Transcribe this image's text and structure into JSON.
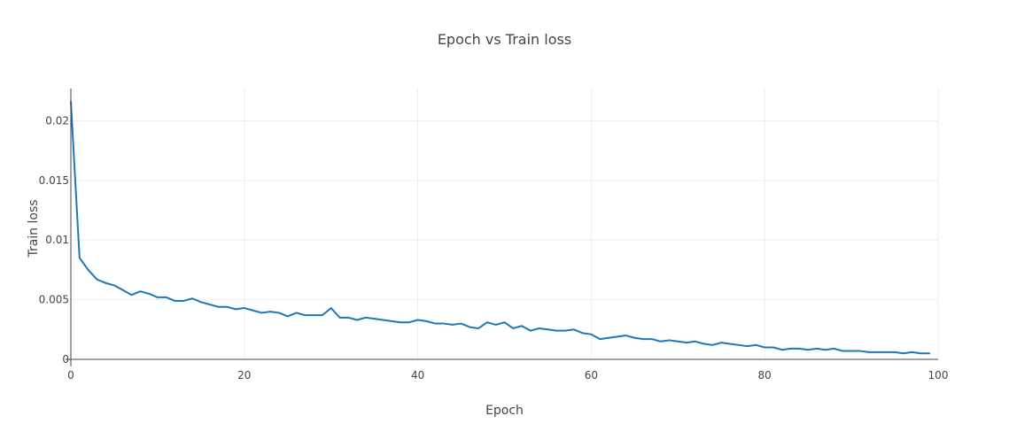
{
  "chart_data": {
    "type": "line",
    "title": "Epoch vs Train loss",
    "xlabel": "Epoch",
    "ylabel": "Train loss",
    "xlim": [
      0,
      100
    ],
    "ylim": [
      0,
      0.0227
    ],
    "xticks": [
      0,
      20,
      40,
      60,
      80,
      100
    ],
    "xtick_labels": [
      "0",
      "20",
      "40",
      "60",
      "80",
      "100"
    ],
    "yticks": [
      0,
      0.005,
      0.01,
      0.015,
      0.02
    ],
    "ytick_labels": [
      "0",
      "0.005",
      "0.01",
      "0.015",
      "0.02"
    ],
    "grid": true,
    "legend": "none",
    "colors": {
      "series": "#1f77b4",
      "grid": "#eeeeee",
      "axis": "#444444",
      "text": "#444444"
    },
    "series": [
      {
        "x": [
          0,
          1,
          2,
          3,
          4,
          5,
          6,
          7,
          8,
          9,
          10,
          11,
          12,
          13,
          14,
          15,
          16,
          17,
          18,
          19,
          20,
          21,
          22,
          23,
          24,
          25,
          26,
          27,
          28,
          29,
          30,
          31,
          32,
          33,
          34,
          35,
          36,
          37,
          38,
          39,
          40,
          41,
          42,
          43,
          44,
          45,
          46,
          47,
          48,
          49,
          50,
          51,
          52,
          53,
          54,
          55,
          56,
          57,
          58,
          59,
          60,
          61,
          62,
          63,
          64,
          65,
          66,
          67,
          68,
          69,
          70,
          71,
          72,
          73,
          74,
          75,
          76,
          77,
          78,
          79,
          80,
          81,
          82,
          83,
          84,
          85,
          86,
          87,
          88,
          89,
          90,
          91,
          92,
          93,
          94,
          95,
          96,
          97,
          98,
          99
        ],
        "values": [
          0.0216,
          0.0085,
          0.0075,
          0.0067,
          0.0064,
          0.0062,
          0.0058,
          0.0054,
          0.0057,
          0.0055,
          0.0052,
          0.0052,
          0.0049,
          0.0049,
          0.0051,
          0.0048,
          0.0046,
          0.0044,
          0.0044,
          0.0042,
          0.0043,
          0.0041,
          0.0039,
          0.004,
          0.0039,
          0.0036,
          0.0039,
          0.0037,
          0.0037,
          0.0037,
          0.0043,
          0.0035,
          0.0035,
          0.0033,
          0.0035,
          0.0034,
          0.0033,
          0.0032,
          0.0031,
          0.0031,
          0.0033,
          0.0032,
          0.003,
          0.003,
          0.0029,
          0.003,
          0.0027,
          0.0026,
          0.0031,
          0.0029,
          0.0031,
          0.0026,
          0.0028,
          0.0024,
          0.0026,
          0.0025,
          0.0024,
          0.0024,
          0.0025,
          0.0022,
          0.0021,
          0.0017,
          0.0018,
          0.0019,
          0.002,
          0.0018,
          0.0017,
          0.0017,
          0.0015,
          0.0016,
          0.0015,
          0.0014,
          0.0015,
          0.0013,
          0.0012,
          0.0014,
          0.0013,
          0.0012,
          0.0011,
          0.0012,
          0.001,
          0.001,
          0.0008,
          0.0009,
          0.0009,
          0.0008,
          0.0009,
          0.0008,
          0.0009,
          0.0007,
          0.0007,
          0.0007,
          0.0006,
          0.0006,
          0.0006,
          0.0006,
          0.0005,
          0.0006,
          0.0005,
          0.0005
        ]
      }
    ]
  }
}
